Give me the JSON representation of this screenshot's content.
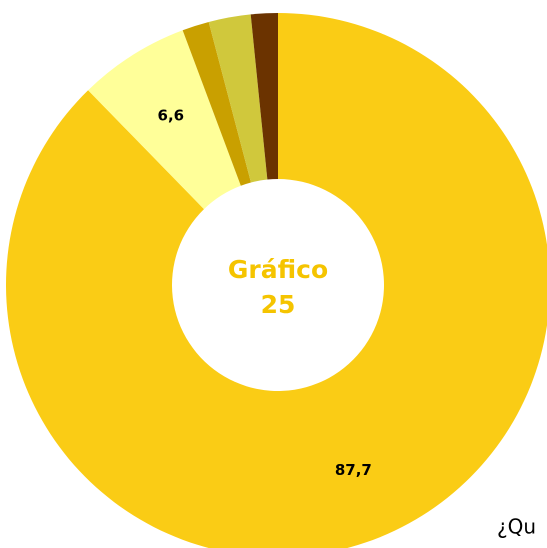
{
  "chart_data": {
    "type": "donut",
    "title_lines": [
      "Gráfico",
      "25"
    ],
    "values": [
      87.7,
      6.6,
      1.6,
      2.5,
      1.6
    ],
    "value_labels": [
      "87,7",
      "6,6",
      null,
      null,
      null
    ],
    "colors": [
      "#facc15",
      "#ffff99",
      "#c9a000",
      "#d0c83c",
      "#6b3300"
    ],
    "footer_text": "¿Qu"
  }
}
